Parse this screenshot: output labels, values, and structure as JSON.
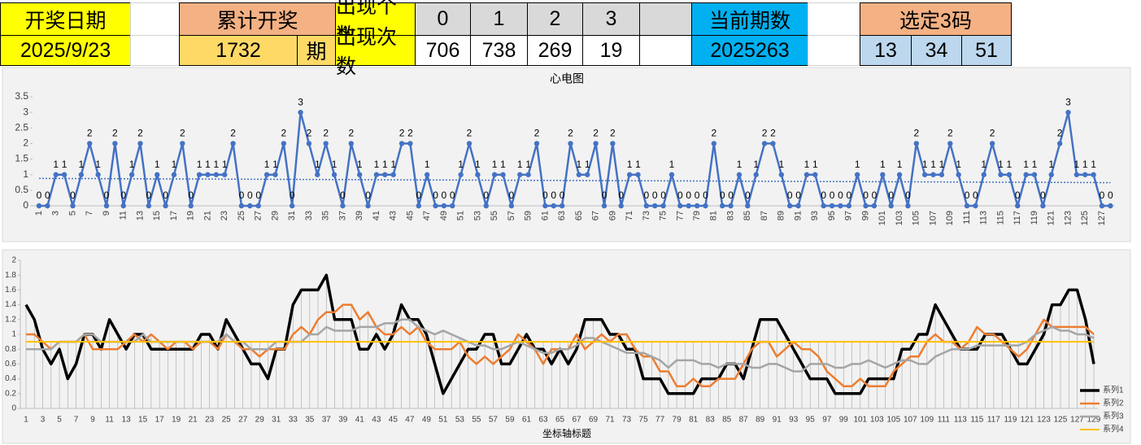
{
  "table": {
    "rows": [
      [
        "开奖日期",
        "累计开奖",
        "出现个数",
        "0",
        "1",
        "2",
        "3",
        "当前期数",
        "选定3码"
      ],
      [
        "2025/9/23",
        "1732",
        "期",
        "出现次数",
        "706",
        "738",
        "269",
        "19",
        "2025263",
        "13",
        "34",
        "51"
      ]
    ]
  },
  "chart_data": [
    {
      "type": "line",
      "title": "心电图",
      "color": "#4472c4",
      "markers": true,
      "data_labels": true,
      "trendline": "linear",
      "grid": false,
      "categories": [
        1,
        null,
        3,
        null,
        5,
        null,
        7,
        null,
        9,
        null,
        11,
        null,
        13,
        null,
        15,
        null,
        17,
        null,
        19,
        null,
        21,
        null,
        23,
        null,
        25,
        null,
        27,
        null,
        29,
        null,
        31,
        null,
        33,
        null,
        35,
        null,
        37,
        null,
        39,
        null,
        41,
        null,
        43,
        null,
        45,
        null,
        47,
        null,
        49,
        null,
        51,
        null,
        53,
        null,
        55,
        null,
        57,
        null,
        59,
        null,
        61,
        null,
        63,
        null,
        65,
        null,
        67,
        null,
        69,
        null,
        71,
        null,
        73,
        null,
        75,
        null,
        77,
        null,
        79,
        null,
        81,
        null,
        83,
        null,
        85,
        null,
        87,
        null,
        89,
        null,
        91,
        null,
        93,
        null,
        95,
        null,
        97,
        null,
        99,
        null,
        101,
        null,
        103,
        null,
        105,
        null,
        107,
        null,
        109,
        null,
        111,
        null,
        113,
        null,
        115,
        null,
        117,
        null,
        119,
        null,
        121,
        null,
        123,
        null,
        125,
        null,
        127,
        null
      ],
      "values": [
        0,
        0,
        1,
        1,
        0,
        1,
        2,
        1,
        0,
        2,
        0,
        1,
        2,
        0,
        1,
        0,
        1,
        2,
        0,
        1,
        1,
        1,
        1,
        2,
        0,
        0,
        0,
        1,
        1,
        2,
        0,
        3,
        2,
        1,
        2,
        1,
        0,
        2,
        1,
        0,
        1,
        1,
        1,
        2,
        2,
        0,
        1,
        0,
        0,
        0,
        1,
        2,
        1,
        0,
        1,
        1,
        0,
        1,
        1,
        2,
        0,
        0,
        0,
        2,
        1,
        1,
        2,
        0,
        2,
        0,
        1,
        1,
        0,
        0,
        0,
        1,
        0,
        0,
        0,
        0,
        2,
        0,
        0,
        1,
        0,
        1,
        2,
        2,
        1,
        0,
        0,
        1,
        1,
        0,
        0,
        0,
        0,
        1,
        0,
        0,
        1,
        0,
        1,
        0,
        2,
        1,
        1,
        1,
        2,
        1,
        0,
        0,
        1,
        2,
        1,
        1,
        0,
        1,
        1,
        0,
        1,
        2,
        3,
        1,
        1,
        1,
        0,
        0
      ],
      "ylim": [
        0,
        3.5
      ],
      "yticks": [
        0,
        0.5,
        1,
        1.5,
        2,
        2.5,
        3,
        3.5
      ]
    },
    {
      "type": "line",
      "x_label": "坐标轴标题",
      "drop_lines": true,
      "grid": false,
      "legend": "right",
      "categories": [
        1,
        null,
        3,
        null,
        5,
        null,
        7,
        null,
        9,
        null,
        11,
        null,
        13,
        null,
        15,
        null,
        17,
        null,
        19,
        null,
        21,
        null,
        23,
        null,
        25,
        null,
        27,
        null,
        29,
        null,
        31,
        null,
        33,
        null,
        35,
        null,
        37,
        null,
        39,
        null,
        41,
        null,
        43,
        null,
        45,
        null,
        47,
        null,
        49,
        null,
        51,
        null,
        53,
        null,
        55,
        null,
        57,
        null,
        59,
        null,
        61,
        null,
        63,
        null,
        65,
        null,
        67,
        null,
        69,
        null,
        71,
        null,
        73,
        null,
        75,
        null,
        77,
        null,
        79,
        null,
        81,
        null,
        83,
        null,
        85,
        null,
        87,
        null,
        89,
        null,
        91,
        null,
        93,
        null,
        95,
        null,
        97,
        null,
        99,
        null,
        101,
        null,
        103,
        null,
        105,
        null,
        107,
        null,
        109,
        null,
        111,
        null,
        113,
        null,
        115,
        null,
        117,
        null,
        119,
        null,
        121,
        null,
        123,
        null,
        125,
        null,
        127,
        null,
        129
      ],
      "series": [
        {
          "name": "系列1",
          "color": "#000000",
          "values": [
            1.4,
            1.2,
            0.8,
            0.6,
            0.8,
            0.4,
            0.6,
            1.0,
            1.0,
            0.8,
            1.2,
            1.0,
            0.8,
            1.0,
            1.0,
            0.8,
            0.8,
            0.8,
            0.8,
            0.8,
            0.8,
            1.0,
            1.0,
            0.8,
            1.2,
            1.0,
            0.8,
            0.6,
            0.6,
            0.4,
            0.8,
            0.8,
            1.4,
            1.6,
            1.6,
            1.6,
            1.8,
            1.2,
            1.2,
            1.2,
            0.8,
            0.8,
            1.0,
            0.8,
            1.0,
            1.4,
            1.2,
            1.2,
            1.0,
            0.6,
            0.2,
            0.4,
            0.6,
            0.8,
            0.8,
            1.0,
            1.0,
            0.6,
            0.6,
            0.8,
            1.0,
            0.8,
            0.8,
            0.6,
            0.8,
            0.6,
            0.8,
            1.2,
            1.2,
            1.2,
            1.0,
            1.0,
            0.8,
            0.8,
            0.4,
            0.4,
            0.4,
            0.2,
            0.2,
            0.2,
            0.2,
            0.4,
            0.4,
            0.4,
            0.6,
            0.6,
            0.4,
            0.8,
            1.2,
            1.2,
            1.2,
            1.0,
            0.8,
            0.6,
            0.4,
            0.4,
            0.4,
            0.2,
            0.2,
            0.2,
            0.2,
            0.4,
            0.4,
            0.4,
            0.4,
            0.8,
            0.8,
            1.0,
            1.0,
            1.4,
            1.2,
            1.0,
            0.8,
            0.8,
            0.8,
            1.0,
            1.0,
            1.0,
            0.8,
            0.6,
            0.6,
            0.8,
            1.0,
            1.4,
            1.4,
            1.6,
            1.6,
            1.2,
            0.6
          ]
        },
        {
          "name": "系列2",
          "color": "#ed7d31",
          "values": [
            1.0,
            1.0,
            0.9,
            0.8,
            0.9,
            0.9,
            0.9,
            1.0,
            0.8,
            0.8,
            0.8,
            0.8,
            0.9,
            1.0,
            0.9,
            1.0,
            0.9,
            0.8,
            0.9,
            0.9,
            0.8,
            0.9,
            0.9,
            0.8,
            1.0,
            0.9,
            0.8,
            0.8,
            0.7,
            0.8,
            0.8,
            0.8,
            1.0,
            1.1,
            1.0,
            1.2,
            1.3,
            1.3,
            1.4,
            1.4,
            1.2,
            1.3,
            1.1,
            1.0,
            1.0,
            1.1,
            1.0,
            1.1,
            0.9,
            0.8,
            0.8,
            0.8,
            0.9,
            0.7,
            0.6,
            0.7,
            0.6,
            0.7,
            0.8,
            1.0,
            0.9,
            0.8,
            0.6,
            0.8,
            0.8,
            0.8,
            1.0,
            0.8,
            0.9,
            1.0,
            0.9,
            1.0,
            1.0,
            0.8,
            0.7,
            0.7,
            0.5,
            0.5,
            0.3,
            0.3,
            0.4,
            0.3,
            0.3,
            0.4,
            0.4,
            0.4,
            0.6,
            0.8,
            0.9,
            0.9,
            0.7,
            0.8,
            0.9,
            0.8,
            0.8,
            0.7,
            0.5,
            0.4,
            0.3,
            0.3,
            0.4,
            0.3,
            0.3,
            0.3,
            0.5,
            0.6,
            0.7,
            0.7,
            0.9,
            1.0,
            0.9,
            0.9,
            0.8,
            0.9,
            1.1,
            1.0,
            1.0,
            0.9,
            0.8,
            0.7,
            0.8,
            1.0,
            1.2,
            1.1,
            1.1,
            1.1,
            1.1,
            1.1,
            1.0
          ]
        },
        {
          "name": "系列3",
          "color": "#a5a5a5",
          "values": [
            0.8,
            0.8,
            0.8,
            0.8,
            0.9,
            0.9,
            0.9,
            1.0,
            1.0,
            0.9,
            0.9,
            0.9,
            0.9,
            0.9,
            1.0,
            0.9,
            0.9,
            0.9,
            0.9,
            0.9,
            0.9,
            0.9,
            0.9,
            0.9,
            1.0,
            0.9,
            0.9,
            0.8,
            0.8,
            0.8,
            0.9,
            0.9,
            0.9,
            0.9,
            1.0,
            1.0,
            1.1,
            1.05,
            1.05,
            1.05,
            1.1,
            1.1,
            1.1,
            1.15,
            1.15,
            1.2,
            1.2,
            1.1,
            1.05,
            1.0,
            1.05,
            1.0,
            0.95,
            0.9,
            0.85,
            0.85,
            0.8,
            0.8,
            0.85,
            0.9,
            0.85,
            0.8,
            0.75,
            0.75,
            0.8,
            0.8,
            0.85,
            0.95,
            0.95,
            0.9,
            0.85,
            0.8,
            0.75,
            0.75,
            0.75,
            0.7,
            0.65,
            0.55,
            0.65,
            0.65,
            0.65,
            0.6,
            0.6,
            0.55,
            0.6,
            0.6,
            0.6,
            0.55,
            0.55,
            0.6,
            0.6,
            0.55,
            0.5,
            0.5,
            0.6,
            0.6,
            0.6,
            0.55,
            0.55,
            0.6,
            0.6,
            0.65,
            0.6,
            0.55,
            0.6,
            0.65,
            0.65,
            0.6,
            0.6,
            0.7,
            0.75,
            0.8,
            0.8,
            0.8,
            0.85,
            0.85,
            0.85,
            0.85,
            0.85,
            0.85,
            0.9,
            1.0,
            1.05,
            1.1,
            1.05,
            1.05,
            1.0,
            1.0,
            0.95
          ]
        },
        {
          "name": "系列4",
          "color": "#ffc000",
          "values": [
            0.9,
            0.9,
            0.9,
            0.9,
            0.9,
            0.9,
            0.9,
            0.9,
            0.9,
            0.9,
            0.9,
            0.9,
            0.9,
            0.9,
            0.9,
            0.9,
            0.9,
            0.9,
            0.9,
            0.9,
            0.9,
            0.9,
            0.9,
            0.9,
            0.9,
            0.9,
            0.9,
            0.9,
            0.9,
            0.9,
            0.9,
            0.9,
            0.9,
            0.9,
            0.9,
            0.9,
            0.9,
            0.9,
            0.9,
            0.9,
            0.9,
            0.9,
            0.9,
            0.9,
            0.9,
            0.9,
            0.9,
            0.9,
            0.9,
            0.9,
            0.9,
            0.9,
            0.9,
            0.9,
            0.9,
            0.9,
            0.9,
            0.9,
            0.9,
            0.9,
            0.9,
            0.9,
            0.9,
            0.9,
            0.9,
            0.9,
            0.9,
            0.9,
            0.9,
            0.9,
            0.9,
            0.9,
            0.9,
            0.9,
            0.9,
            0.9,
            0.9,
            0.9,
            0.9,
            0.9,
            0.9,
            0.9,
            0.9,
            0.9,
            0.9,
            0.9,
            0.9,
            0.9,
            0.9,
            0.9,
            0.9,
            0.9,
            0.9,
            0.9,
            0.9,
            0.9,
            0.9,
            0.9,
            0.9,
            0.9,
            0.9,
            0.9,
            0.9,
            0.9,
            0.9,
            0.9,
            0.9,
            0.9,
            0.9,
            0.9,
            0.9,
            0.9,
            0.9,
            0.9,
            0.9,
            0.9,
            0.9,
            0.9,
            0.9,
            0.9,
            0.9,
            0.9,
            0.9,
            0.9,
            0.9,
            0.9,
            0.9,
            0.9,
            0.9
          ]
        }
      ],
      "ylim": [
        0,
        2
      ],
      "yticks": [
        0,
        0.2,
        0.4,
        0.6,
        0.8,
        1,
        1.2,
        1.4,
        1.6,
        1.8,
        2
      ]
    }
  ]
}
